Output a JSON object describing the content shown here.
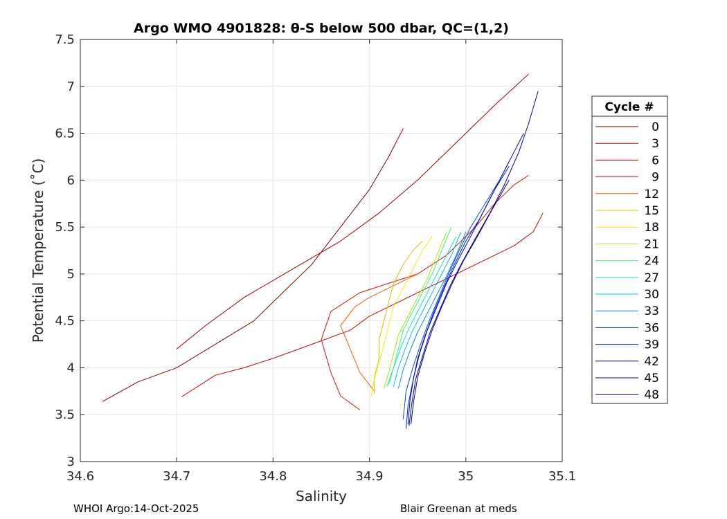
{
  "chart_data": {
    "type": "line",
    "title": "Argo WMO 4901828: θ-S below 500 dbar,  QC=(1,2)",
    "xlabel": "Salinity",
    "ylabel": "Potential Temperature (˚C)",
    "xlim": [
      34.6,
      35.1
    ],
    "ylim": [
      3,
      7.5
    ],
    "xticks": [
      34.6,
      34.7,
      34.8,
      34.9,
      35,
      35.1
    ],
    "xtick_labels": [
      "34.6",
      "34.7",
      "34.8",
      "34.9",
      "35",
      "35.1"
    ],
    "yticks": [
      3,
      3.5,
      4,
      4.5,
      5,
      5.5,
      6,
      6.5,
      7,
      7.5
    ],
    "ytick_labels": [
      "3",
      "3.5",
      "4",
      "4.5",
      "5",
      "5.5",
      "6",
      "6.5",
      "7",
      "7.5"
    ],
    "grid": true,
    "legend_title": "Cycle #",
    "legend_position": "outside-right",
    "colormap": "jet",
    "series": [
      {
        "name": "0",
        "color": "#800000",
        "s": [
          34.623,
          34.66,
          34.7,
          34.74,
          34.78,
          34.81,
          34.84,
          34.87,
          34.9,
          34.92,
          34.935
        ],
        "t": [
          3.64,
          3.85,
          4.0,
          4.25,
          4.5,
          4.8,
          5.1,
          5.5,
          5.9,
          6.25,
          6.55
        ]
      },
      {
        "name": "3",
        "color": "#a00000",
        "s": [
          34.7,
          34.73,
          34.77,
          34.82,
          34.87,
          34.91,
          34.95,
          34.99,
          35.03,
          35.065
        ],
        "t": [
          4.2,
          4.45,
          4.75,
          5.05,
          5.35,
          5.65,
          6.0,
          6.4,
          6.8,
          7.13
        ]
      },
      {
        "name": "6",
        "color": "#c00000",
        "s": [
          34.705,
          34.74,
          34.77,
          34.8,
          34.84,
          34.88,
          34.9,
          34.93,
          34.96,
          34.99,
          35.02,
          35.05,
          35.07,
          35.08
        ],
        "t": [
          3.69,
          3.92,
          4.0,
          4.1,
          4.25,
          4.4,
          4.55,
          4.7,
          4.85,
          5.0,
          5.15,
          5.3,
          5.45,
          5.65
        ]
      },
      {
        "name": "9",
        "color": "#e01000",
        "s": [
          34.89,
          34.87,
          34.86,
          34.85,
          34.86,
          34.89,
          34.92,
          34.95,
          34.98,
          35.01,
          35.03,
          35.05,
          35.065
        ],
        "t": [
          3.55,
          3.7,
          3.95,
          4.3,
          4.6,
          4.8,
          4.9,
          5.0,
          5.2,
          5.5,
          5.75,
          5.95,
          6.05
        ]
      },
      {
        "name": "12",
        "color": "#f06000",
        "s": [
          34.905,
          34.89,
          34.88,
          34.87,
          34.885,
          34.9,
          34.92,
          34.94,
          34.95
        ],
        "t": [
          3.75,
          3.95,
          4.2,
          4.45,
          4.65,
          4.75,
          4.85,
          4.95,
          5.0
        ]
      },
      {
        "name": "15",
        "color": "#e0c000",
        "s": [
          34.905,
          34.905,
          34.91,
          34.91,
          34.915,
          34.92,
          34.925,
          34.935,
          34.945,
          34.955
        ],
        "t": [
          3.72,
          3.9,
          4.1,
          4.3,
          4.5,
          4.7,
          4.9,
          5.1,
          5.25,
          5.35
        ]
      },
      {
        "name": "18",
        "color": "#f0f000",
        "s": [
          34.902,
          34.905,
          34.91,
          34.915,
          34.92,
          34.925,
          34.935,
          34.945,
          34.955,
          34.965
        ],
        "t": [
          3.7,
          3.88,
          4.05,
          4.25,
          4.45,
          4.65,
          4.85,
          5.05,
          5.25,
          5.4
        ]
      },
      {
        "name": "21",
        "color": "#a0f000",
        "s": [
          34.915,
          34.92,
          34.925,
          34.93,
          34.94,
          34.95,
          34.96,
          34.97,
          34.98
        ],
        "t": [
          3.78,
          3.95,
          4.15,
          4.35,
          4.55,
          4.75,
          4.95,
          5.2,
          5.45
        ]
      },
      {
        "name": "24",
        "color": "#40f080",
        "s": [
          34.918,
          34.925,
          34.93,
          34.935,
          34.945,
          34.955,
          34.965,
          34.975,
          34.985
        ],
        "t": [
          3.8,
          4.0,
          4.2,
          4.4,
          4.6,
          4.8,
          5.0,
          5.25,
          5.5
        ]
      },
      {
        "name": "27",
        "color": "#00f0c0",
        "s": [
          34.92,
          34.925,
          34.932,
          34.94,
          34.95,
          34.96,
          34.97,
          34.98,
          34.99
        ],
        "t": [
          3.82,
          4.0,
          4.2,
          4.4,
          4.6,
          4.8,
          5.0,
          5.2,
          5.4
        ]
      },
      {
        "name": "30",
        "color": "#00c0f0",
        "s": [
          34.925,
          34.93,
          34.937,
          34.945,
          34.955,
          34.965,
          34.975,
          34.985,
          34.995
        ],
        "t": [
          3.8,
          4.0,
          4.2,
          4.4,
          4.6,
          4.8,
          5.0,
          5.2,
          5.45
        ]
      },
      {
        "name": "33",
        "color": "#0090e0",
        "s": [
          34.93,
          34.935,
          34.942,
          34.95,
          34.96,
          34.97,
          34.98,
          34.99,
          35.0
        ],
        "t": [
          3.78,
          3.98,
          4.18,
          4.38,
          4.58,
          4.78,
          4.98,
          5.2,
          5.45
        ]
      },
      {
        "name": "36",
        "color": "#0050d0",
        "s": [
          34.935,
          34.938,
          34.945,
          34.953,
          34.962,
          34.972,
          34.982,
          34.993,
          35.005,
          35.02,
          35.035,
          35.045
        ],
        "t": [
          3.45,
          3.75,
          4.0,
          4.25,
          4.5,
          4.75,
          5.0,
          5.25,
          5.5,
          5.75,
          6.0,
          6.2
        ]
      },
      {
        "name": "39",
        "color": "#0020e0",
        "s": [
          34.938,
          34.94,
          34.945,
          34.95,
          34.958,
          34.967,
          34.977,
          34.988,
          35.0,
          35.015,
          35.03,
          35.045
        ],
        "t": [
          3.35,
          3.6,
          3.85,
          4.1,
          4.35,
          4.6,
          4.85,
          5.1,
          5.35,
          5.6,
          5.9,
          6.15
        ]
      },
      {
        "name": "42",
        "color": "#0000c0",
        "s": [
          34.94,
          34.942,
          34.946,
          34.952,
          34.96,
          34.97,
          34.98,
          34.992,
          35.005,
          35.02,
          35.035,
          35.05,
          35.06
        ],
        "t": [
          3.4,
          3.65,
          3.9,
          4.15,
          4.4,
          4.65,
          4.9,
          5.15,
          5.4,
          5.7,
          6.0,
          6.3,
          6.5
        ]
      },
      {
        "name": "45",
        "color": "#0000a0",
        "s": [
          34.941,
          34.944,
          34.948,
          34.955,
          34.963,
          34.973,
          34.984,
          34.996,
          35.01,
          35.025,
          35.04,
          35.055,
          35.065,
          35.075
        ],
        "t": [
          3.38,
          3.62,
          3.88,
          4.12,
          4.38,
          4.62,
          4.88,
          5.12,
          5.38,
          5.65,
          5.95,
          6.3,
          6.6,
          6.95
        ]
      },
      {
        "name": "48",
        "color": "#000080",
        "s": [
          34.943,
          34.946,
          34.95,
          34.957,
          34.965,
          34.975,
          34.986,
          34.998,
          35.012,
          35.028,
          35.045
        ],
        "t": [
          3.4,
          3.65,
          3.9,
          4.15,
          4.4,
          4.65,
          4.9,
          5.15,
          5.4,
          5.7,
          6.0
        ]
      }
    ]
  },
  "footer": {
    "left": "WHOI Argo:14-Oct-2025",
    "right": "Blair Greenan at meds"
  }
}
